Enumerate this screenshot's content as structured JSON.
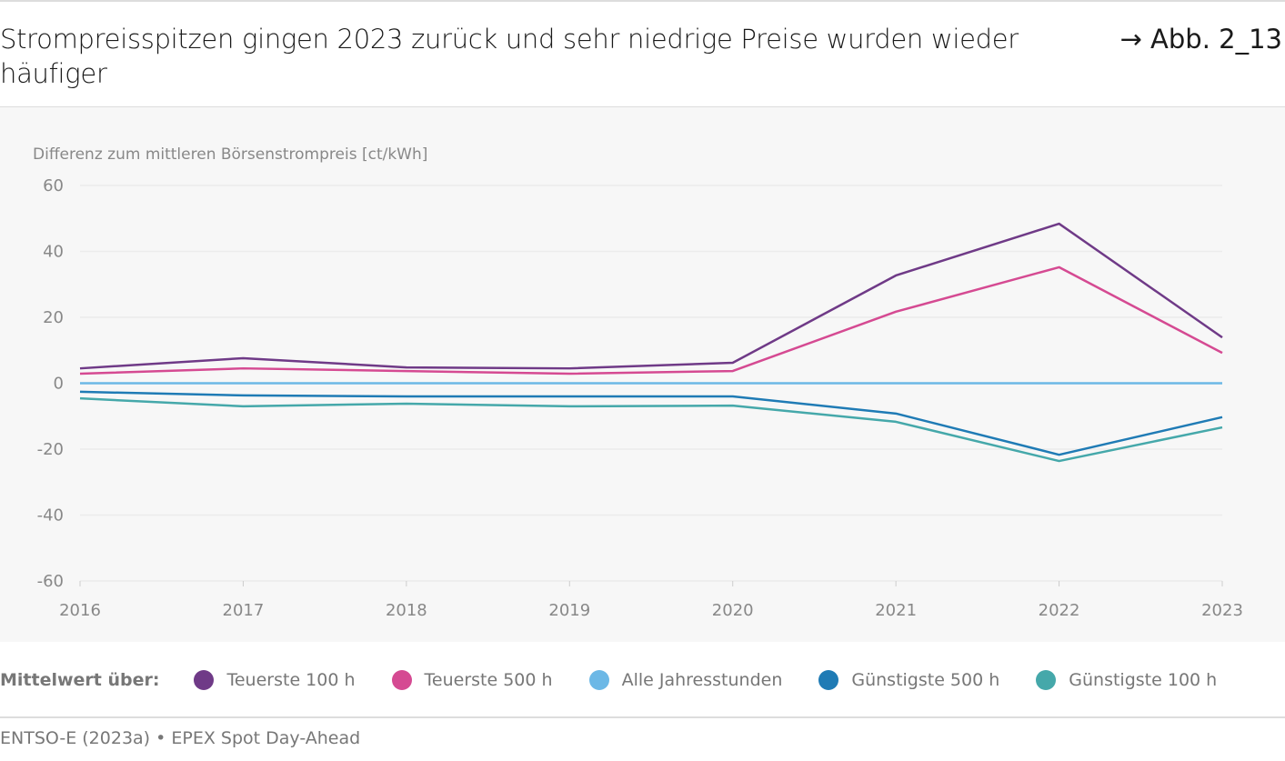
{
  "header": {
    "title": "Strompreisspitzen gingen 2023 zurück und sehr niedrige Preise wurden wieder häufiger",
    "figure_ref": "→ Abb. 2_13"
  },
  "legend_label": "Mittelwert über:",
  "source": "ENTSO-E (2023a) • EPEX Spot Day-Ahead",
  "chart_data": {
    "type": "line",
    "title": "Strompreisspitzen gingen 2023 zurück und sehr niedrige Preise wurden wieder häufiger",
    "ylabel": "Differenz zum mittleren Börsenstrompreis [ct/kWh]",
    "xlabel": "",
    "x": [
      "2016",
      "2017",
      "2018",
      "2019",
      "2020",
      "2021",
      "2022",
      "2023"
    ],
    "ylim": [
      -60,
      60
    ],
    "yticks": [
      60,
      40,
      20,
      0,
      -20,
      -40,
      -60
    ],
    "yticklabels": [
      "60",
      "40",
      "20",
      "0",
      "-20",
      "-40",
      "-60"
    ],
    "grid": true,
    "legend_position": "bottom",
    "series": [
      {
        "name": "Teuerste 100 h",
        "color": "#6f3a87",
        "values": [
          4.5,
          7.6,
          4.8,
          4.5,
          6.2,
          32.7,
          48.4,
          13.9
        ]
      },
      {
        "name": "Teuerste 500 h",
        "color": "#d54a92",
        "values": [
          2.9,
          4.5,
          3.7,
          2.9,
          3.7,
          21.7,
          35.2,
          9.2
        ]
      },
      {
        "name": "Alle Jahresstunden",
        "color": "#6cb8e6",
        "values": [
          0,
          0,
          0,
          0,
          0,
          0,
          0,
          0
        ]
      },
      {
        "name": "Günstigste 500 h",
        "color": "#1f7bb5",
        "values": [
          -2.6,
          -3.7,
          -4.0,
          -4.0,
          -4.0,
          -9.2,
          -21.7,
          -10.3
        ]
      },
      {
        "name": "Günstigste 100 h",
        "color": "#45a8aa",
        "values": [
          -4.6,
          -7.0,
          -6.2,
          -7.0,
          -6.8,
          -11.7,
          -23.6,
          -13.4
        ]
      }
    ]
  }
}
